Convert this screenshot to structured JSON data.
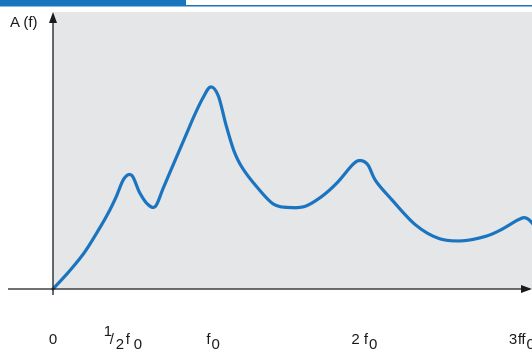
{
  "colors": {
    "top_bar": "#1976be",
    "plot_background": "#e4e6e8",
    "curve": "#1b74bf",
    "axis": "#1a1a1a"
  },
  "chart_data": {
    "type": "line",
    "title": "",
    "ylabel": "A (f)",
    "xlabel": "f",
    "xlim": [
      0,
      3.3
    ],
    "ylim": [
      0,
      1.0
    ],
    "x_tick_labels": [
      {
        "value": 0,
        "main": "0",
        "pre": "",
        "sub": ""
      },
      {
        "value": 0.5,
        "main": "f",
        "pre": "1/2",
        "sub": "0"
      },
      {
        "value": 1,
        "main": "f",
        "pre": "",
        "sub": "0"
      },
      {
        "value": 2,
        "main": "2 f",
        "pre": "",
        "sub": "0"
      },
      {
        "value": 3,
        "main": "3 f",
        "pre": "",
        "sub": "0"
      }
    ],
    "series": [
      {
        "x": [
          0,
          0.1,
          0.2,
          0.3,
          0.35,
          0.4,
          0.45,
          0.5,
          0.55,
          0.6,
          0.65,
          0.7,
          0.75,
          0.8,
          0.85,
          0.9,
          0.95,
          1.0,
          1.05,
          1.1,
          1.15,
          1.2,
          1.3,
          1.4,
          1.5,
          1.6,
          1.7,
          1.8,
          1.9,
          1.95,
          2.0,
          2.05,
          2.15,
          2.3,
          2.45,
          2.6,
          2.75,
          2.85,
          2.95,
          3.0,
          3.05,
          3.08,
          3.15,
          3.2
        ],
        "y": [
          0,
          0.075,
          0.16,
          0.27,
          0.33,
          0.4,
          0.48,
          0.495,
          0.42,
          0.37,
          0.36,
          0.44,
          0.52,
          0.6,
          0.68,
          0.76,
          0.83,
          0.88,
          0.84,
          0.71,
          0.6,
          0.53,
          0.44,
          0.37,
          0.355,
          0.36,
          0.4,
          0.46,
          0.54,
          0.56,
          0.54,
          0.47,
          0.39,
          0.28,
          0.22,
          0.21,
          0.23,
          0.26,
          0.3,
          0.31,
          0.28,
          0.23,
          0.2,
          0.17
        ]
      }
    ]
  }
}
